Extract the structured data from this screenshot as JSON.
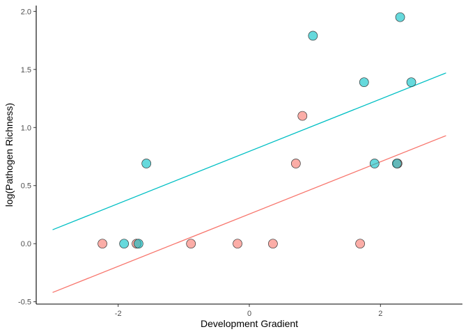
{
  "chart_data": {
    "type": "scatter",
    "title": "",
    "xlabel": "Development Gradient",
    "ylabel": "log(Pathogen Richness)",
    "xlim": [
      -3.25,
      3.25
    ],
    "ylim": [
      -0.52,
      2.05
    ],
    "x_ticks": [
      -2,
      0,
      2
    ],
    "x_tick_labels": [
      "-2",
      "0",
      "2"
    ],
    "y_ticks": [
      -0.5,
      0.0,
      0.5,
      1.0,
      1.5,
      2.0
    ],
    "y_tick_labels": [
      "-0.5",
      "0.0",
      "0.5",
      "1.0",
      "1.5",
      "2.0"
    ],
    "grid": false,
    "legend": "none",
    "series": [
      {
        "color": "#F8766D",
        "points": [
          {
            "x": -2.24,
            "y": 0.0
          },
          {
            "x": -1.72,
            "y": 0.0
          },
          {
            "x": -0.89,
            "y": 0.0
          },
          {
            "x": -0.18,
            "y": 0.0
          },
          {
            "x": 0.36,
            "y": 0.0
          },
          {
            "x": 0.71,
            "y": 0.69
          },
          {
            "x": 0.81,
            "y": 1.1
          },
          {
            "x": 1.69,
            "y": 0.0
          },
          {
            "x": 2.26,
            "y": 0.69
          }
        ],
        "fit_line": {
          "x": [
            -3.0,
            3.0
          ],
          "y": [
            -0.42,
            0.93
          ]
        }
      },
      {
        "color": "#00BFC4",
        "points": [
          {
            "x": -1.91,
            "y": 0.0
          },
          {
            "x": -1.69,
            "y": 0.0
          },
          {
            "x": -1.57,
            "y": 0.69
          },
          {
            "x": 0.97,
            "y": 1.79
          },
          {
            "x": 1.75,
            "y": 1.39
          },
          {
            "x": 1.91,
            "y": 0.69
          },
          {
            "x": 2.25,
            "y": 0.69
          },
          {
            "x": 2.3,
            "y": 1.95
          },
          {
            "x": 2.47,
            "y": 1.39
          }
        ],
        "fit_line": {
          "x": [
            -3.0,
            3.0
          ],
          "y": [
            0.12,
            1.47
          ]
        }
      }
    ]
  }
}
